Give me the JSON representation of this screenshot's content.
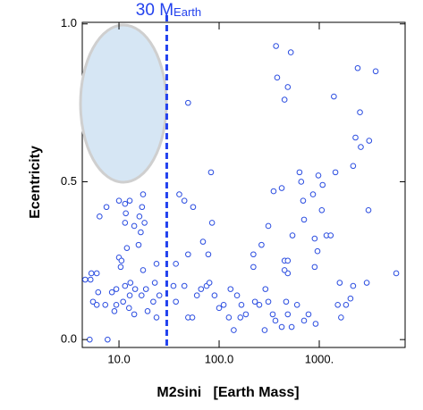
{
  "chart_data": {
    "type": "scatter",
    "xlabel": "M2sini   [Earth Mass]",
    "ylabel": "Ecentricity",
    "xscale": "log",
    "xlim": [
      4.3,
      7200
    ],
    "ylim": [
      -0.025,
      1.005
    ],
    "xticks": [
      {
        "value": 10,
        "label": "10.0"
      },
      {
        "value": 100,
        "label": "100.0"
      },
      {
        "value": 1000,
        "label": "1000."
      }
    ],
    "yticks": [
      {
        "value": 0,
        "label": "0.0"
      },
      {
        "value": 0.5,
        "label": "0.5"
      },
      {
        "value": 1,
        "label": "1.0"
      }
    ],
    "vline": {
      "value": 30,
      "label": "30 M",
      "label_sub": "Earth",
      "color": "#2342ee"
    },
    "series": [
      {
        "color": "#2b4de0",
        "x": [
          4.6,
          5.3,
          6.0,
          6.4,
          7.5,
          10,
          11.5,
          12.8,
          17.4,
          17,
          16,
          11.7,
          11.5,
          14.2,
          18,
          16.5,
          12,
          15.7,
          10,
          10.6,
          10.4,
          17.4,
          23.7,
          6.2,
          8.5,
          9.4,
          11.5,
          13,
          14.5,
          18.6,
          22.8,
          25.3,
          22,
          16.8,
          12.8,
          11,
          9.4,
          7.3,
          6,
          5.5,
          5.2,
          12.6,
          19.3,
          23.7,
          14.2,
          9,
          7.7,
          5.1,
          49,
          40,
          45,
          55,
          83,
          85,
          69,
          78,
          49,
          37,
          45,
          35,
          37,
          49,
          54,
          60,
          66,
          75,
          80,
          90,
          100,
          111,
          125,
          140,
          163,
          185,
          167,
          151,
          130,
          228,
          252,
          290,
          310,
          285,
          343,
          365,
          422,
          467,
          485,
          530,
          600,
          705,
          781,
          920,
          220,
          220,
          265,
          310,
          350,
          422,
          450,
          485,
          485,
          450,
          540,
          635,
          660,
          690,
          705,
          866,
          900,
          900,
          960,
          1060,
          1180,
          1300,
          1450,
          1600,
          1530,
          1650,
          2180,
          2300,
          2420,
          2550,
          2600,
          3150,
          3100,
          3660,
          1400,
          1080,
          980,
          370,
          520,
          380,
          450,
          485,
          2050,
          2180,
          2980,
          5870,
          1850
        ],
        "y": [
          0.19,
          0.21,
          0.21,
          0.39,
          0.42,
          0.44,
          0.43,
          0.44,
          0.46,
          0.42,
          0.39,
          0.4,
          0.37,
          0.36,
          0.37,
          0.34,
          0.29,
          0.3,
          0.26,
          0.25,
          0.23,
          0.22,
          0.24,
          0.15,
          0.15,
          0.16,
          0.17,
          0.18,
          0.16,
          0.16,
          0.18,
          0.14,
          0.12,
          0.14,
          0.14,
          0.12,
          0.11,
          0.11,
          0.11,
          0.12,
          0.19,
          0.1,
          0.09,
          0.07,
          0.08,
          0.09,
          0.0,
          0.0,
          0.75,
          0.46,
          0.44,
          0.42,
          0.53,
          0.37,
          0.31,
          0.27,
          0.27,
          0.24,
          0.17,
          0.17,
          0.12,
          0.07,
          0.07,
          0.14,
          0.16,
          0.17,
          0.18,
          0.14,
          0.1,
          0.11,
          0.07,
          0.03,
          0.07,
          0.08,
          0.11,
          0.14,
          0.16,
          0.12,
          0.11,
          0.16,
          0.12,
          0.03,
          0.08,
          0.06,
          0.04,
          0.12,
          0.08,
          0.04,
          0.11,
          0.06,
          0.08,
          0.05,
          0.23,
          0.27,
          0.3,
          0.36,
          0.47,
          0.48,
          0.25,
          0.25,
          0.21,
          0.22,
          0.33,
          0.53,
          0.5,
          0.44,
          0.38,
          0.46,
          0.32,
          0.23,
          0.28,
          0.41,
          0.33,
          0.33,
          0.53,
          0.18,
          0.11,
          0.07,
          0.55,
          0.64,
          0.86,
          0.72,
          0.61,
          0.63,
          0.41,
          0.85,
          0.77,
          0.49,
          0.52,
          0.93,
          0.91,
          0.83,
          0.76,
          0.8,
          0.13,
          0.17,
          0.18,
          0.21,
          0.11
        ]
      }
    ]
  }
}
